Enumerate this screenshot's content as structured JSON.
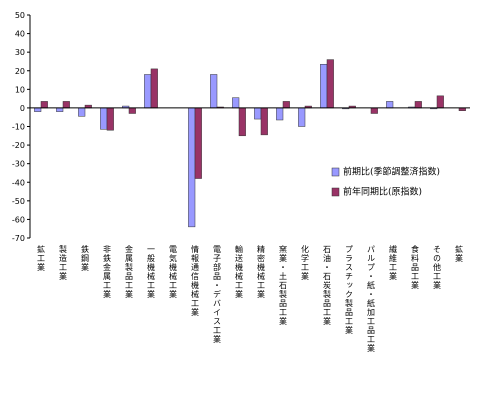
{
  "chart_data": {
    "type": "bar",
    "categories": [
      "鉱工業",
      "製造工業",
      "鉄鋼業",
      "非鉄金属工業",
      "金属製品工業",
      "一般機械工業",
      "電気機械工業",
      "情報通信機械工業",
      "電子部品・デバイス工業",
      "輸送機械工業",
      "精密機械工業",
      "窯業・土石製品工業",
      "化学工業",
      "石油・石炭製品工業",
      "プラスチック製品工業",
      "パルプ・紙・紙加工品工業",
      "繊維工業",
      "食料品工業",
      "その他工業",
      "鉱業"
    ],
    "series": [
      {
        "name": "前期比(季節調整済指数)",
        "color": "#9999ff",
        "values": [
          -2,
          -2,
          -4.5,
          -11.5,
          1,
          18,
          0,
          -64,
          18,
          5.5,
          -6,
          -6.5,
          -10,
          23.5,
          -0.5,
          0,
          3.5,
          0.5,
          -0.5,
          0
        ]
      },
      {
        "name": "前年同期比(原指数)",
        "color": "#993366",
        "values": [
          3.5,
          3.5,
          1.5,
          -12,
          -3,
          21,
          0,
          -38,
          0.5,
          -15,
          -14.5,
          3.5,
          1,
          26,
          1,
          -3,
          0,
          3.5,
          6.5,
          -1.5
        ]
      }
    ],
    "ylim": [
      -70,
      50
    ],
    "yticks": [
      -70,
      -60,
      -50,
      -40,
      -30,
      -20,
      -10,
      0,
      10,
      20,
      30,
      40,
      50
    ]
  }
}
